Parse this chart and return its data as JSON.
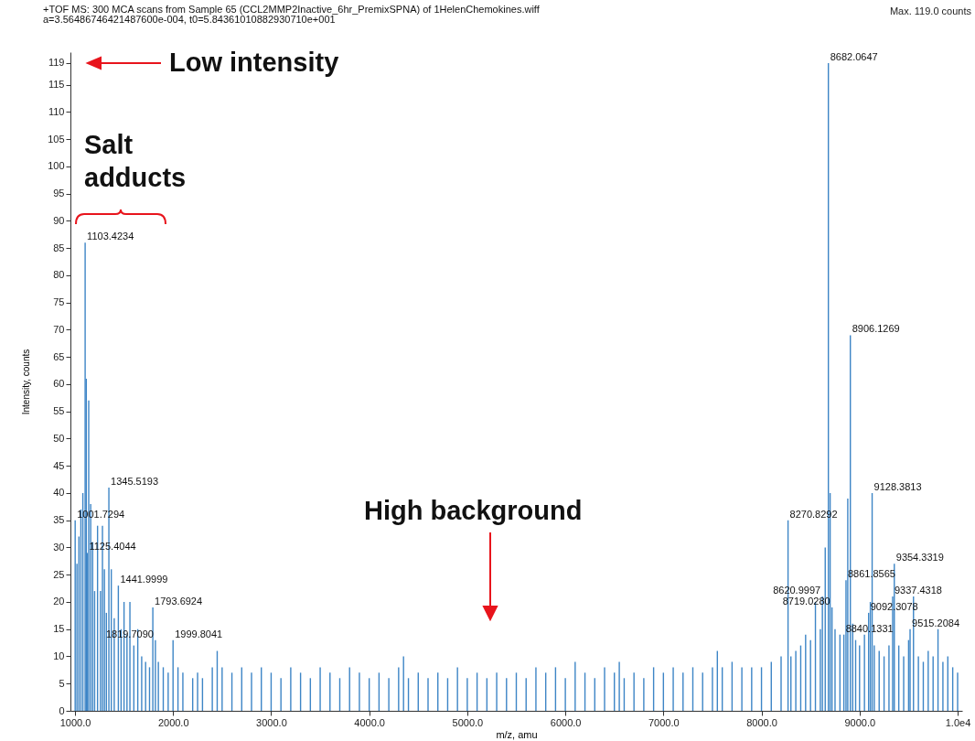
{
  "chart_data": {
    "type": "bar",
    "title": "+TOF MS: 300 MCA scans from Sample 65 (CCL2MMP2Inactive_6hr_PremixSPNA) of 1HelenChemokines.wiff",
    "subtitle": "a=3.56486746421487600e-004, t0=5.84361010882930710e+001",
    "xlabel": "m/z, amu",
    "ylabel": "Intensity, counts",
    "x": [
      1001.7294,
      1020,
      1040,
      1060,
      1080,
      1103.4234,
      1115,
      1125.4044,
      1140,
      1160,
      1180,
      1200,
      1230,
      1260,
      1280,
      1300,
      1320,
      1345.5193,
      1370,
      1400,
      1441.9999,
      1470,
      1500,
      1530,
      1560,
      1600,
      1640,
      1680,
      1720,
      1760,
      1793.6924,
      1819.709,
      1850,
      1900,
      1950,
      1999.8041,
      2050,
      2100,
      2200,
      2250,
      2300,
      2400,
      2450,
      2500,
      2600,
      2700,
      2800,
      2900,
      3000,
      3100,
      3200,
      3300,
      3400,
      3500,
      3600,
      3700,
      3800,
      3900,
      4000,
      4100,
      4200,
      4300,
      4350,
      4400,
      4500,
      4600,
      4700,
      4800,
      4900,
      5000,
      5100,
      5200,
      5300,
      5400,
      5500,
      5600,
      5700,
      5800,
      5900,
      6000,
      6100,
      6200,
      6300,
      6400,
      6500,
      6550,
      6600,
      6700,
      6800,
      6900,
      7000,
      7100,
      7200,
      7300,
      7400,
      7500,
      7550,
      7600,
      7700,
      7800,
      7900,
      8000,
      8100,
      8200,
      8270.8292,
      8300,
      8350,
      8400,
      8450,
      8500,
      8550,
      8600,
      8620.9997,
      8650,
      8682.0647,
      8700,
      8719.028,
      8750,
      8800,
      8840.1331,
      8861.8565,
      8880,
      8906.1269,
      8930,
      8960,
      9000,
      9050,
      9092.3078,
      9110,
      9128.3813,
      9150,
      9200,
      9250,
      9300,
      9337.4318,
      9354.3319,
      9400,
      9450,
      9500,
      9515.2084,
      9550,
      9600,
      9650,
      9700,
      9750,
      9800,
      9850,
      9900,
      9950,
      10000
    ],
    "series": [
      {
        "color": "#3d85c6",
        "values": [
          35,
          27,
          32,
          37,
          40,
          86,
          61,
          29,
          57,
          38,
          31,
          22,
          34,
          22,
          34,
          26,
          18,
          41,
          26,
          17,
          23,
          15,
          20,
          14,
          20,
          12,
          15,
          10,
          9,
          8,
          19,
          13,
          9,
          8,
          7,
          13,
          8,
          7,
          6,
          7,
          6,
          8,
          11,
          8,
          7,
          8,
          7,
          8,
          7,
          6,
          8,
          7,
          6,
          8,
          7,
          6,
          8,
          7,
          6,
          7,
          6,
          8,
          10,
          6,
          7,
          6,
          7,
          6,
          8,
          6,
          7,
          6,
          7,
          6,
          7,
          6,
          8,
          7,
          8,
          6,
          9,
          7,
          6,
          8,
          7,
          9,
          6,
          7,
          6,
          8,
          7,
          8,
          7,
          8,
          7,
          8,
          11,
          8,
          9,
          8,
          8,
          8,
          9,
          10,
          35,
          10,
          11,
          12,
          14,
          13,
          20,
          15,
          21,
          30,
          119,
          40,
          19,
          15,
          14,
          14,
          24,
          39,
          69,
          16,
          13,
          12,
          14,
          18,
          20,
          40,
          12,
          11,
          10,
          12,
          21,
          27,
          12,
          10,
          13,
          15,
          21,
          10,
          9,
          11,
          10,
          15,
          9,
          10,
          8,
          7
        ]
      }
    ],
    "xlim": [
      1000,
      10000
    ],
    "xticks": [
      {
        "value": 1000,
        "label": "1000.0"
      },
      {
        "value": 2000,
        "label": "2000.0"
      },
      {
        "value": 3000,
        "label": "3000.0"
      },
      {
        "value": 4000,
        "label": "4000.0"
      },
      {
        "value": 5000,
        "label": "5000.0"
      },
      {
        "value": 6000,
        "label": "6000.0"
      },
      {
        "value": 7000,
        "label": "7000.0"
      },
      {
        "value": 8000,
        "label": "8000.0"
      },
      {
        "value": 9000,
        "label": "9000.0"
      },
      {
        "value": 10000,
        "label": "1.0e4"
      }
    ],
    "ylim": [
      0,
      121
    ],
    "yticks": [
      0,
      5,
      10,
      15,
      20,
      25,
      30,
      35,
      40,
      45,
      50,
      55,
      60,
      65,
      70,
      75,
      80,
      85,
      90,
      95,
      100,
      105,
      110,
      115,
      119
    ],
    "grid": false,
    "annotations": [
      "Max. 119.0 counts",
      "Low intensity",
      "Salt adducts",
      "High background",
      {
        "text": "1001.7294",
        "x": 1001.7294,
        "y": 35
      },
      {
        "text": "1103.4234",
        "x": 1103.4234,
        "y": 86
      },
      {
        "text": "1125.4044",
        "x": 1125.4044,
        "y": 29
      },
      {
        "text": "1345.5193",
        "x": 1345.5193,
        "y": 41
      },
      {
        "text": "1441.9999",
        "x": 1441.9999,
        "y": 23
      },
      {
        "text": "1793.6924",
        "x": 1793.6924,
        "y": 19
      },
      {
        "text": "1819.7090",
        "x": 1819.709,
        "y": 13
      },
      {
        "text": "1999.8041",
        "x": 1999.8041,
        "y": 13
      },
      {
        "text": "8270.8292",
        "x": 8270.8292,
        "y": 35
      },
      {
        "text": "8620.9997",
        "x": 8620.9997,
        "y": 21
      },
      {
        "text": "8682.0647",
        "x": 8682.0647,
        "y": 119
      },
      {
        "text": "8719.0280",
        "x": 8719.028,
        "y": 19
      },
      {
        "text": "8840.1331",
        "x": 8840.1331,
        "y": 14
      },
      {
        "text": "8861.8565",
        "x": 8861.8565,
        "y": 24
      },
      {
        "text": "8906.1269",
        "x": 8906.1269,
        "y": 69
      },
      {
        "text": "9092.3078",
        "x": 9092.3078,
        "y": 18
      },
      {
        "text": "9128.3813",
        "x": 9128.3813,
        "y": 40
      },
      {
        "text": "9337.4318",
        "x": 9337.4318,
        "y": 21
      },
      {
        "text": "9354.3319",
        "x": 9354.3319,
        "y": 27
      },
      {
        "text": "9515.2084",
        "x": 9515.2084,
        "y": 15
      }
    ]
  }
}
